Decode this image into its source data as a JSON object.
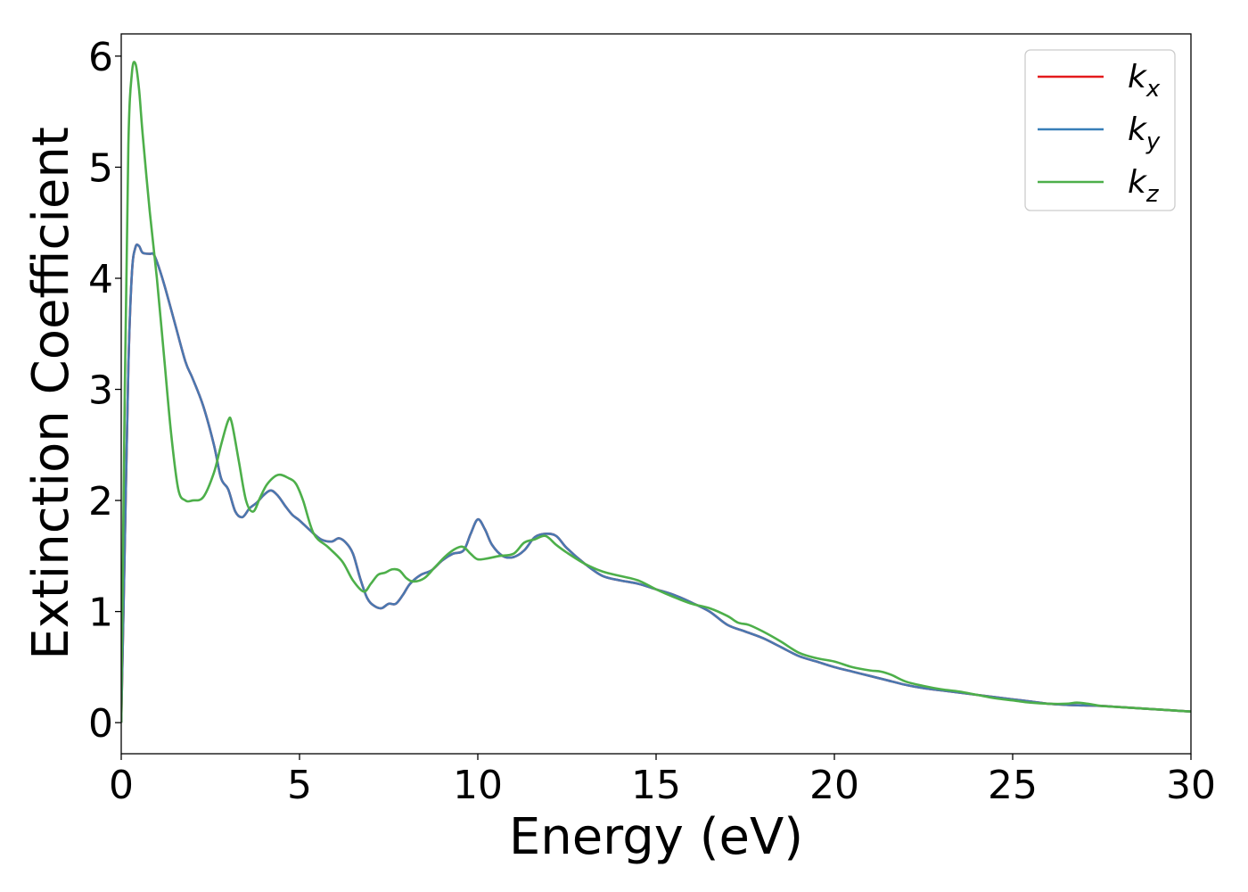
{
  "chart_data": {
    "type": "line",
    "title": "",
    "xlabel": "Energy (eV)",
    "ylabel": "Extinction Coefficient",
    "xlim": [
      0,
      30
    ],
    "ylim": [
      -0.28,
      6.2
    ],
    "xticks": [
      0,
      5,
      10,
      15,
      20,
      25,
      30
    ],
    "yticks": [
      0,
      1,
      2,
      3,
      4,
      5,
      6
    ],
    "grid": false,
    "legend": {
      "position": "top-right",
      "entries": [
        {
          "base": "k",
          "sub": "x",
          "color": "#e41a1c"
        },
        {
          "base": "k",
          "sub": "y",
          "color": "#377eb8"
        },
        {
          "base": "k",
          "sub": "z",
          "color": "#4daf4a"
        }
      ]
    },
    "series": [
      {
        "name": "kx",
        "color": "#e41a1c",
        "x": [
          0,
          0.1,
          0.2,
          0.3,
          0.4,
          0.5,
          0.6,
          0.8,
          0.9,
          1.0,
          1.2,
          1.5,
          1.8,
          2.0,
          2.3,
          2.6,
          2.8,
          3.0,
          3.2,
          3.4,
          3.6,
          3.8,
          4.0,
          4.2,
          4.4,
          4.6,
          4.8,
          5.0,
          5.3,
          5.6,
          5.9,
          6.1,
          6.3,
          6.5,
          6.7,
          6.9,
          7.1,
          7.3,
          7.5,
          7.7,
          7.9,
          8.1,
          8.4,
          8.7,
          9.0,
          9.3,
          9.6,
          9.8,
          10.0,
          10.2,
          10.4,
          10.7,
          11.0,
          11.3,
          11.6,
          11.9,
          12.2,
          12.5,
          13.0,
          13.5,
          14.0,
          14.5,
          15.0,
          15.5,
          16.0,
          16.5,
          17.0,
          17.5,
          18.0,
          18.5,
          19.0,
          19.5,
          20.0,
          20.5,
          21.0,
          21.5,
          22.0,
          22.5,
          23.0,
          23.5,
          24.0,
          24.5,
          25.0,
          25.5,
          26.0,
          26.5,
          27.0,
          27.5,
          28.0,
          28.5,
          29.0,
          29.5,
          30.0
        ],
        "y": [
          0,
          1.6,
          3.2,
          4.05,
          4.28,
          4.29,
          4.23,
          4.22,
          4.22,
          4.15,
          3.95,
          3.6,
          3.25,
          3.1,
          2.85,
          2.5,
          2.2,
          2.1,
          1.9,
          1.85,
          1.93,
          1.98,
          2.05,
          2.09,
          2.04,
          1.95,
          1.87,
          1.82,
          1.73,
          1.65,
          1.63,
          1.66,
          1.62,
          1.52,
          1.3,
          1.12,
          1.05,
          1.03,
          1.07,
          1.07,
          1.15,
          1.25,
          1.33,
          1.37,
          1.46,
          1.52,
          1.55,
          1.7,
          1.83,
          1.74,
          1.6,
          1.5,
          1.49,
          1.55,
          1.67,
          1.7,
          1.68,
          1.57,
          1.43,
          1.32,
          1.28,
          1.25,
          1.2,
          1.15,
          1.08,
          1.0,
          0.88,
          0.82,
          0.76,
          0.68,
          0.6,
          0.55,
          0.5,
          0.46,
          0.42,
          0.38,
          0.34,
          0.31,
          0.29,
          0.27,
          0.25,
          0.23,
          0.21,
          0.19,
          0.17,
          0.16,
          0.155,
          0.15,
          0.14,
          0.13,
          0.12,
          0.11,
          0.1
        ]
      },
      {
        "name": "ky",
        "color": "#4a78b0",
        "x": [
          0,
          0.1,
          0.2,
          0.3,
          0.4,
          0.5,
          0.6,
          0.8,
          0.9,
          1.0,
          1.2,
          1.5,
          1.8,
          2.0,
          2.3,
          2.6,
          2.8,
          3.0,
          3.2,
          3.4,
          3.6,
          3.8,
          4.0,
          4.2,
          4.4,
          4.6,
          4.8,
          5.0,
          5.3,
          5.6,
          5.9,
          6.1,
          6.3,
          6.5,
          6.7,
          6.9,
          7.1,
          7.3,
          7.5,
          7.7,
          7.9,
          8.1,
          8.4,
          8.7,
          9.0,
          9.3,
          9.6,
          9.8,
          10.0,
          10.2,
          10.4,
          10.7,
          11.0,
          11.3,
          11.6,
          11.9,
          12.2,
          12.5,
          13.0,
          13.5,
          14.0,
          14.5,
          15.0,
          15.5,
          16.0,
          16.5,
          17.0,
          17.5,
          18.0,
          18.5,
          19.0,
          19.5,
          20.0,
          20.5,
          21.0,
          21.5,
          22.0,
          22.5,
          23.0,
          23.5,
          24.0,
          24.5,
          25.0,
          25.5,
          26.0,
          26.5,
          27.0,
          27.5,
          28.0,
          28.5,
          29.0,
          29.5,
          30.0
        ],
        "y": [
          0,
          1.6,
          3.2,
          4.05,
          4.28,
          4.29,
          4.23,
          4.22,
          4.22,
          4.15,
          3.95,
          3.6,
          3.25,
          3.1,
          2.85,
          2.5,
          2.2,
          2.1,
          1.9,
          1.85,
          1.93,
          1.98,
          2.05,
          2.09,
          2.04,
          1.95,
          1.87,
          1.82,
          1.73,
          1.65,
          1.63,
          1.66,
          1.62,
          1.52,
          1.3,
          1.12,
          1.05,
          1.03,
          1.07,
          1.07,
          1.15,
          1.25,
          1.33,
          1.37,
          1.46,
          1.52,
          1.55,
          1.7,
          1.83,
          1.74,
          1.6,
          1.5,
          1.49,
          1.55,
          1.67,
          1.7,
          1.68,
          1.57,
          1.43,
          1.32,
          1.28,
          1.25,
          1.2,
          1.15,
          1.08,
          1.0,
          0.88,
          0.82,
          0.76,
          0.68,
          0.6,
          0.55,
          0.5,
          0.46,
          0.42,
          0.38,
          0.34,
          0.31,
          0.29,
          0.27,
          0.25,
          0.23,
          0.21,
          0.19,
          0.17,
          0.16,
          0.155,
          0.15,
          0.14,
          0.13,
          0.12,
          0.11,
          0.1
        ]
      },
      {
        "name": "kz",
        "color": "#4daf4a",
        "x": [
          0,
          0.1,
          0.2,
          0.3,
          0.4,
          0.5,
          0.6,
          0.8,
          1.0,
          1.2,
          1.4,
          1.6,
          1.8,
          2.0,
          2.3,
          2.6,
          2.8,
          3.0,
          3.1,
          3.3,
          3.5,
          3.7,
          3.9,
          4.1,
          4.4,
          4.7,
          4.9,
          5.1,
          5.4,
          5.8,
          6.2,
          6.5,
          6.8,
          7.0,
          7.2,
          7.4,
          7.6,
          7.8,
          8.0,
          8.2,
          8.5,
          8.8,
          9.1,
          9.4,
          9.6,
          9.8,
          10.0,
          10.3,
          10.6,
          11.0,
          11.3,
          11.6,
          11.9,
          12.2,
          12.5,
          13.0,
          13.5,
          14.0,
          14.5,
          15.0,
          15.5,
          16.0,
          16.5,
          17.0,
          17.3,
          17.6,
          18.0,
          18.5,
          19.0,
          19.5,
          20.0,
          20.5,
          21.0,
          21.3,
          21.6,
          22.0,
          22.5,
          23.0,
          23.5,
          24.0,
          24.5,
          25.0,
          25.5,
          26.0,
          26.5,
          26.8,
          27.1,
          27.5,
          28.0,
          28.5,
          29.0,
          29.5,
          30.0
        ],
        "y": [
          0,
          3.0,
          5.2,
          5.85,
          5.93,
          5.7,
          5.3,
          4.6,
          4.0,
          3.3,
          2.6,
          2.1,
          2.0,
          2.0,
          2.03,
          2.25,
          2.5,
          2.72,
          2.7,
          2.35,
          2.0,
          1.9,
          2.03,
          2.15,
          2.23,
          2.2,
          2.15,
          2.0,
          1.7,
          1.58,
          1.45,
          1.28,
          1.18,
          1.25,
          1.33,
          1.35,
          1.38,
          1.37,
          1.3,
          1.27,
          1.3,
          1.4,
          1.5,
          1.57,
          1.58,
          1.52,
          1.47,
          1.48,
          1.5,
          1.52,
          1.62,
          1.65,
          1.68,
          1.6,
          1.53,
          1.43,
          1.36,
          1.32,
          1.28,
          1.2,
          1.13,
          1.07,
          1.03,
          0.96,
          0.9,
          0.88,
          0.82,
          0.73,
          0.63,
          0.58,
          0.55,
          0.5,
          0.47,
          0.46,
          0.43,
          0.37,
          0.33,
          0.3,
          0.28,
          0.25,
          0.22,
          0.2,
          0.18,
          0.17,
          0.17,
          0.18,
          0.17,
          0.15,
          0.14,
          0.13,
          0.12,
          0.11,
          0.1
        ]
      }
    ]
  }
}
